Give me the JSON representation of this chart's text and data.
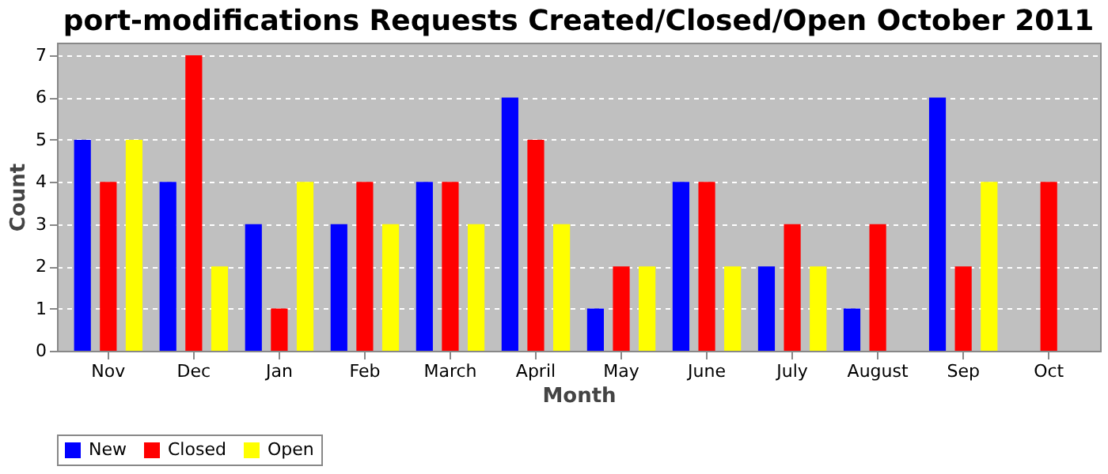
{
  "chart_data": {
    "type": "bar",
    "title": "port-modifications Requests Created/Closed/Open October 2011",
    "xlabel": "Month",
    "ylabel": "Count",
    "categories": [
      "Nov",
      "Dec",
      "Jan",
      "Feb",
      "March",
      "April",
      "May",
      "June",
      "July",
      "August",
      "Sep",
      "Oct"
    ],
    "series": [
      {
        "name": "New",
        "color": "#0000ff",
        "values": [
          5,
          4,
          3,
          3,
          4,
          6,
          1,
          4,
          2,
          1,
          6,
          0
        ]
      },
      {
        "name": "Closed",
        "color": "#ff0000",
        "values": [
          4,
          7,
          1,
          4,
          4,
          5,
          2,
          4,
          3,
          3,
          2,
          4
        ]
      },
      {
        "name": "Open",
        "color": "#ffff00",
        "values": [
          5,
          2,
          4,
          3,
          3,
          3,
          2,
          2,
          2,
          0,
          4,
          0
        ]
      }
    ],
    "ylim": [
      0,
      7.3
    ],
    "yticks": [
      0,
      1,
      2,
      3,
      4,
      5,
      6,
      7
    ],
    "grid": "y",
    "legend": "bottom"
  }
}
